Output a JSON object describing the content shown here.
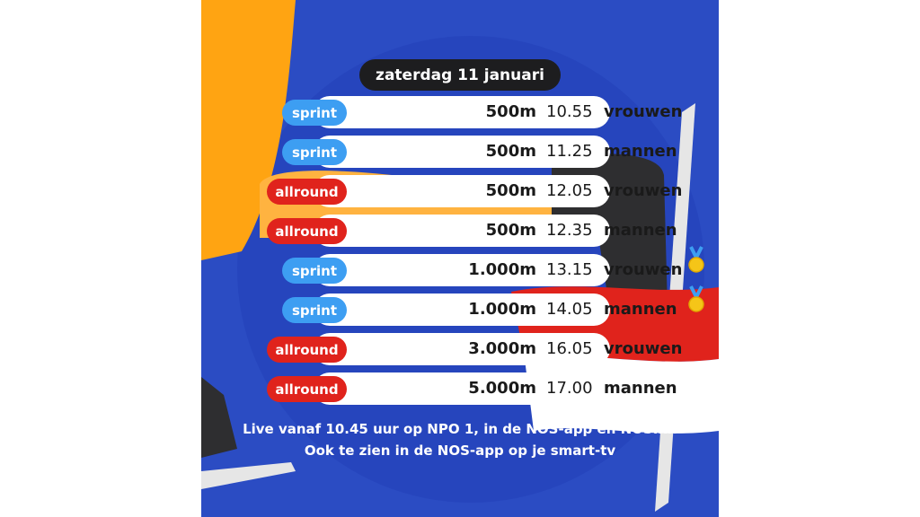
{
  "date": "zaterdag 11 januari",
  "races": [
    {
      "category": "sprint",
      "distance": "500m",
      "time": "10.55",
      "gender": "vrouwen",
      "medal": false
    },
    {
      "category": "sprint",
      "distance": "500m",
      "time": "11.25",
      "gender": "mannen",
      "medal": false
    },
    {
      "category": "allround",
      "distance": "500m",
      "time": "12.05",
      "gender": "vrouwen",
      "medal": false
    },
    {
      "category": "allround",
      "distance": "500m",
      "time": "12.35",
      "gender": "mannen",
      "medal": false
    },
    {
      "category": "sprint",
      "distance": "1.000m",
      "time": "13.15",
      "gender": "vrouwen",
      "medal": true
    },
    {
      "category": "sprint",
      "distance": "1.000m",
      "time": "14.05",
      "gender": "mannen",
      "medal": true
    },
    {
      "category": "allround",
      "distance": "3.000m",
      "time": "16.05",
      "gender": "vrouwen",
      "medal": false
    },
    {
      "category": "allround",
      "distance": "5.000m",
      "time": "17.00",
      "gender": "mannen",
      "medal": false
    }
  ],
  "info": {
    "line1": "Live vanaf 10.45 uur op NPO 1, in de NOS-app en NOS.nl.",
    "line2": "Ook te zien in de NOS-app op je smart-tv"
  },
  "colors": {
    "background": "#2b4cc3",
    "sprint": "#3d9ef2",
    "allround": "#e0231c",
    "date_pill": "#1d1d1f",
    "orange": "#ffa412"
  }
}
